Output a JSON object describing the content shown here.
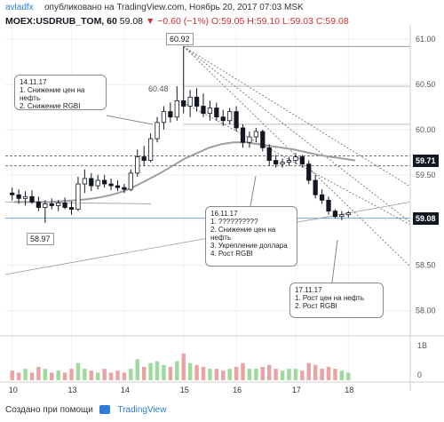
{
  "header": {
    "author": "avladfx",
    "published": "опубликовано на TradingView.com, Ноябрь 20, 2017 07:03 MSK"
  },
  "symbol_line": {
    "symbol": "MOEX:USDRUB_TOM, 60",
    "last": "59.08",
    "change": "▼ −0.60 (−1%)",
    "ohlc": "O:59.05 H:59.10 L:59.03 C:59.08"
  },
  "colors": {
    "candle": "#131722",
    "ma_gray": "#9e9e9e",
    "trendline": "#555555",
    "volume": "#b9b9b9",
    "up_volume": "#9ed99e",
    "down_volume": "#e9a3a3"
  },
  "annotations": [
    {
      "id": "a1",
      "text": "14.11.17\n1. Снижение цен на нефть\n2. Снижение RGBI"
    },
    {
      "id": "a2",
      "text": "16.11.17\n1. ??????????\n2. Снижение цен на нефть\n3. Укрепление доллара\n4. Рост RGBI"
    },
    {
      "id": "a3",
      "text": "17.11.17\n1. Рост цен на нефть\n2. Рост RGBI"
    }
  ],
  "price_labels": {
    "high": "60.92",
    "high2": "60.48",
    "low": "58.97",
    "level1": "59.71",
    "current": "59.08"
  },
  "footer": {
    "text": "Создано при помощи",
    "brand": "TradingView"
  },
  "chart_data": {
    "type": "candlestick",
    "x_ticks": [
      "10",
      "13",
      "14",
      "15",
      "16",
      "17",
      "18"
    ],
    "y_ticks": [
      "61.00",
      "60.50",
      "60.00",
      "59.50",
      "59.00",
      "58.50",
      "58.00"
    ],
    "volume_ticks": [
      "1B",
      "0"
    ],
    "ylim": [
      57.75,
      61.1
    ],
    "x_range": [
      0,
      52
    ],
    "candles": [
      {
        "o": 59.3,
        "h": 59.36,
        "l": 59.22,
        "c": 59.28
      },
      {
        "o": 59.28,
        "h": 59.34,
        "l": 59.18,
        "c": 59.24
      },
      {
        "o": 59.24,
        "h": 59.32,
        "l": 59.16,
        "c": 59.26
      },
      {
        "o": 59.26,
        "h": 59.33,
        "l": 59.18,
        "c": 59.2
      },
      {
        "o": 59.2,
        "h": 59.26,
        "l": 59.1,
        "c": 59.14
      },
      {
        "o": 59.14,
        "h": 59.22,
        "l": 58.97,
        "c": 59.18
      },
      {
        "o": 59.18,
        "h": 59.24,
        "l": 59.12,
        "c": 59.16
      },
      {
        "o": 59.16,
        "h": 59.22,
        "l": 59.1,
        "c": 59.19
      },
      {
        "o": 59.19,
        "h": 59.25,
        "l": 59.12,
        "c": 59.14
      },
      {
        "o": 59.14,
        "h": 59.21,
        "l": 59.06,
        "c": 59.12
      },
      {
        "o": 59.12,
        "h": 59.48,
        "l": 59.1,
        "c": 59.4
      },
      {
        "o": 59.4,
        "h": 59.56,
        "l": 59.3,
        "c": 59.46
      },
      {
        "o": 59.46,
        "h": 59.52,
        "l": 59.32,
        "c": 59.38
      },
      {
        "o": 59.38,
        "h": 59.5,
        "l": 59.34,
        "c": 59.44
      },
      {
        "o": 59.44,
        "h": 59.5,
        "l": 59.36,
        "c": 59.4
      },
      {
        "o": 59.4,
        "h": 59.46,
        "l": 59.33,
        "c": 59.38
      },
      {
        "o": 59.38,
        "h": 59.44,
        "l": 59.32,
        "c": 59.36
      },
      {
        "o": 59.36,
        "h": 59.4,
        "l": 59.3,
        "c": 59.34
      },
      {
        "o": 59.34,
        "h": 59.56,
        "l": 59.32,
        "c": 59.52
      },
      {
        "o": 59.52,
        "h": 59.78,
        "l": 59.48,
        "c": 59.7
      },
      {
        "o": 59.7,
        "h": 59.82,
        "l": 59.6,
        "c": 59.66
      },
      {
        "o": 59.66,
        "h": 59.96,
        "l": 59.64,
        "c": 59.9
      },
      {
        "o": 59.9,
        "h": 60.14,
        "l": 59.86,
        "c": 60.08
      },
      {
        "o": 60.08,
        "h": 60.26,
        "l": 60.0,
        "c": 60.2
      },
      {
        "o": 60.2,
        "h": 60.3,
        "l": 60.08,
        "c": 60.14
      },
      {
        "o": 60.14,
        "h": 60.48,
        "l": 60.1,
        "c": 60.32
      },
      {
        "o": 60.32,
        "h": 60.92,
        "l": 60.18,
        "c": 60.26
      },
      {
        "o": 60.26,
        "h": 60.44,
        "l": 60.14,
        "c": 60.36
      },
      {
        "o": 60.36,
        "h": 60.46,
        "l": 60.2,
        "c": 60.26
      },
      {
        "o": 60.26,
        "h": 60.4,
        "l": 60.14,
        "c": 60.18
      },
      {
        "o": 60.18,
        "h": 60.32,
        "l": 60.1,
        "c": 60.24
      },
      {
        "o": 60.24,
        "h": 60.3,
        "l": 60.1,
        "c": 60.14
      },
      {
        "o": 60.14,
        "h": 60.22,
        "l": 60.04,
        "c": 60.1
      },
      {
        "o": 60.1,
        "h": 60.24,
        "l": 60.06,
        "c": 60.2
      },
      {
        "o": 60.2,
        "h": 60.26,
        "l": 59.98,
        "c": 60.02
      },
      {
        "o": 60.02,
        "h": 60.06,
        "l": 59.8,
        "c": 59.86
      },
      {
        "o": 59.86,
        "h": 59.98,
        "l": 59.8,
        "c": 59.92
      },
      {
        "o": 59.92,
        "h": 60.02,
        "l": 59.86,
        "c": 59.98
      },
      {
        "o": 59.98,
        "h": 60.0,
        "l": 59.76,
        "c": 59.8
      },
      {
        "o": 59.8,
        "h": 59.84,
        "l": 59.6,
        "c": 59.66
      },
      {
        "o": 59.66,
        "h": 59.72,
        "l": 59.58,
        "c": 59.62
      },
      {
        "o": 59.62,
        "h": 59.68,
        "l": 59.58,
        "c": 59.64
      },
      {
        "o": 59.64,
        "h": 59.7,
        "l": 59.6,
        "c": 59.66
      },
      {
        "o": 59.66,
        "h": 59.74,
        "l": 59.62,
        "c": 59.7
      },
      {
        "o": 59.7,
        "h": 59.72,
        "l": 59.58,
        "c": 59.62
      },
      {
        "o": 59.62,
        "h": 59.66,
        "l": 59.4,
        "c": 59.44
      },
      {
        "o": 59.44,
        "h": 59.5,
        "l": 59.24,
        "c": 59.28
      },
      {
        "o": 59.28,
        "h": 59.34,
        "l": 59.18,
        "c": 59.22
      },
      {
        "o": 59.22,
        "h": 59.26,
        "l": 59.06,
        "c": 59.1
      },
      {
        "o": 59.1,
        "h": 59.12,
        "l": 59.02,
        "c": 59.04
      },
      {
        "o": 59.04,
        "h": 59.1,
        "l": 59.0,
        "c": 59.06
      },
      {
        "o": 59.06,
        "h": 59.1,
        "l": 59.03,
        "c": 59.08
      }
    ],
    "moving_average": [
      59.2,
      59.2,
      59.2,
      59.2,
      59.21,
      59.22,
      59.23,
      59.25,
      59.28,
      59.32,
      59.38,
      59.45,
      59.52,
      59.6,
      59.68,
      59.74,
      59.8,
      59.84,
      59.86,
      59.86,
      59.84,
      59.82,
      59.8,
      59.78,
      59.75,
      59.72,
      59.7,
      59.68,
      59.66
    ],
    "volumes": [
      0.25,
      0.2,
      0.3,
      0.2,
      0.35,
      0.3,
      0.2,
      0.25,
      0.2,
      0.3,
      0.45,
      0.3,
      0.25,
      0.2,
      0.3,
      0.2,
      0.25,
      0.2,
      0.3,
      0.55,
      0.35,
      0.45,
      0.5,
      0.4,
      0.35,
      0.5,
      0.7,
      0.45,
      0.4,
      0.35,
      0.3,
      0.3,
      0.25,
      0.3,
      0.35,
      0.45,
      0.3,
      0.3,
      0.35,
      0.4,
      0.3,
      0.25,
      0.3,
      0.3,
      0.25,
      0.45,
      0.4,
      0.3,
      0.35,
      0.3,
      0.25,
      0.2
    ]
  }
}
